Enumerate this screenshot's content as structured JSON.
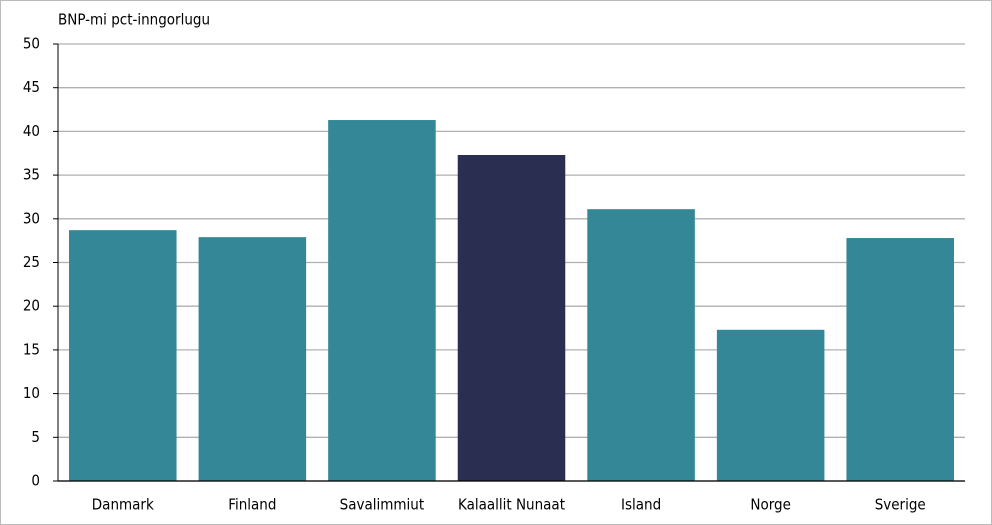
{
  "chart_data": {
    "type": "bar",
    "y_label": "BNP-mi pct-inngorlugu",
    "categories": [
      "Danmark",
      "Finland",
      "Savalimmiut",
      "Kalaallit Nunaat",
      "Island",
      "Norge",
      "Sverige"
    ],
    "values": [
      28.7,
      27.9,
      41.3,
      37.3,
      31.1,
      17.3,
      27.8
    ],
    "colors": [
      "#348797",
      "#348797",
      "#348797",
      "#2a2f52",
      "#348797",
      "#348797",
      "#348797"
    ],
    "ylim": [
      0,
      50
    ],
    "yticks": [
      0,
      5,
      10,
      15,
      20,
      25,
      30,
      35,
      40,
      45,
      50
    ],
    "grid": true
  }
}
